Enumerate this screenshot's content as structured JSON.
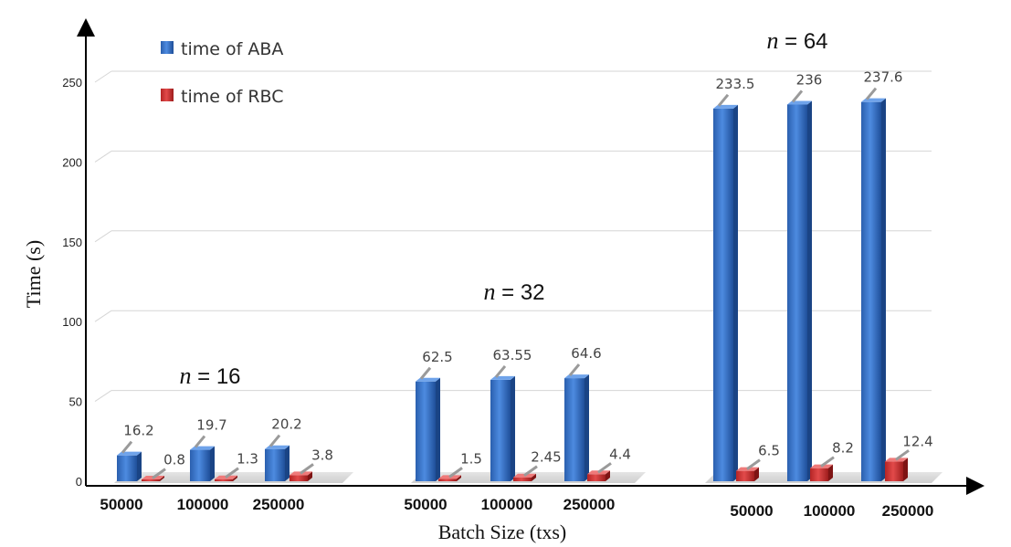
{
  "chart_data": {
    "type": "bar",
    "xlabel": "Batch Size (txs)",
    "ylabel": "Time (s)",
    "ylim": [
      0,
      250
    ],
    "yticks": [
      0,
      50,
      100,
      150,
      200,
      250
    ],
    "grid": true,
    "legend_position": "top-left",
    "groups": [
      {
        "label_var": "n",
        "label_value": "= 16",
        "categories": [
          "50000",
          "100000",
          "250000"
        ],
        "series": [
          {
            "name": "time of ABA",
            "values": [
              16.2,
              19.7,
              20.2
            ],
            "labels": [
              "16.2",
              "19.7",
              "20.2"
            ]
          },
          {
            "name": "time of RBC",
            "values": [
              0.8,
              1.3,
              3.8
            ],
            "labels": [
              "0.8",
              "1.3",
              "3.8"
            ]
          }
        ]
      },
      {
        "label_var": "n",
        "label_value": "= 32",
        "categories": [
          "50000",
          "100000",
          "250000"
        ],
        "series": [
          {
            "name": "time of ABA",
            "values": [
              62.5,
              63.55,
              64.6
            ],
            "labels": [
              "62.5",
              "63.55",
              "64.6"
            ]
          },
          {
            "name": "time of RBC",
            "values": [
              1.5,
              2.45,
              4.4
            ],
            "labels": [
              "1.5",
              "2.45",
              "4.4"
            ]
          }
        ]
      },
      {
        "label_var": "n",
        "label_value": "= 64",
        "categories": [
          "50000",
          "100000",
          "250000"
        ],
        "series": [
          {
            "name": "time of ABA",
            "values": [
              233.5,
              236,
              237.6
            ],
            "labels": [
              "233.5",
              "236",
              "237.6"
            ]
          },
          {
            "name": "time of RBC",
            "values": [
              6.5,
              8.2,
              12.4
            ],
            "labels": [
              "6.5",
              "8.2",
              "12.4"
            ]
          }
        ]
      }
    ],
    "legend": [
      {
        "name": "time of ABA",
        "color": "#3a73c4"
      },
      {
        "name": "time of RBC",
        "color": "#d23a3a"
      }
    ]
  }
}
